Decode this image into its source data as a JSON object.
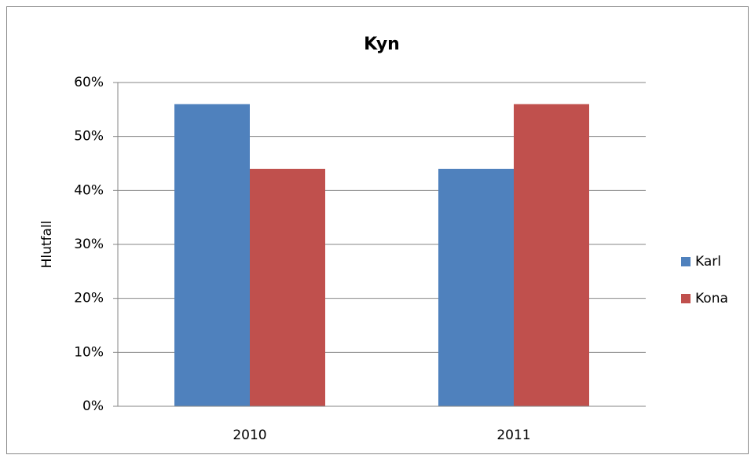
{
  "chart_data": {
    "type": "bar",
    "title": "Kyn",
    "y_label": "Hlutfall",
    "categories": [
      "2010",
      "2011"
    ],
    "series": [
      {
        "name": "Karl",
        "color": "#4f81bd",
        "values": [
          56,
          44
        ]
      },
      {
        "name": "Kona",
        "color": "#c0504d",
        "values": [
          44,
          56
        ]
      }
    ],
    "ylim": [
      0,
      60
    ],
    "yticks": [
      {
        "value": 0,
        "label": "0%"
      },
      {
        "value": 10,
        "label": "10%"
      },
      {
        "value": 20,
        "label": "20%"
      },
      {
        "value": 30,
        "label": "30%"
      },
      {
        "value": 40,
        "label": "40%"
      },
      {
        "value": 50,
        "label": "50%"
      },
      {
        "value": 60,
        "label": "60%"
      }
    ],
    "grid": true,
    "legend": "right"
  }
}
